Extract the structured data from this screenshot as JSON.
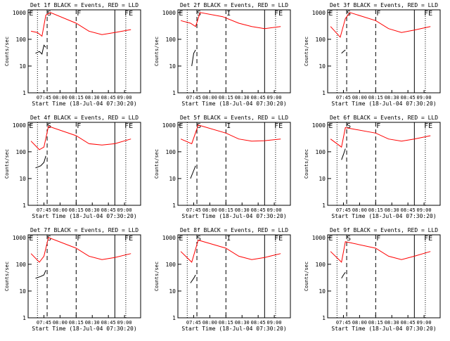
{
  "common": {
    "ylabel": "Counts/sec",
    "x_tick_labels": [
      "07:45",
      "08:00",
      "08:15",
      "08:30",
      "08:45",
      "09:00"
    ],
    "y_tick_labels": [
      "1",
      "10",
      "100",
      "1000"
    ],
    "xlabel": "Start Time (18-Jul-04 07:30:20)",
    "colors": {
      "events": "#000000",
      "lld": "#ff0000",
      "axes": "#000000"
    }
  },
  "chart_data": [
    {
      "type": "line",
      "title": "Det 1f BLACK = Events, RED = LLD",
      "markers": [
        "E",
        "S",
        "F",
        "FE"
      ],
      "series": [
        {
          "color": "black",
          "x": [
            7.62,
            7.68,
            7.72,
            7.75,
            7.78
          ],
          "y": [
            30,
            35,
            28,
            60,
            50
          ]
        },
        {
          "color": "red",
          "x": [
            7.55,
            7.65,
            7.72,
            7.78,
            7.85,
            8.25,
            8.45,
            8.65,
            8.85,
            9.1
          ],
          "y": [
            200,
            180,
            130,
            800,
            1000,
            400,
            200,
            150,
            180,
            230
          ]
        }
      ]
    },
    {
      "type": "line",
      "title": "Det 2f BLACK = Events, RED = LLD",
      "markers": [
        "E",
        "S",
        "I",
        "FE"
      ],
      "series": [
        {
          "color": "black",
          "x": [
            7.72,
            7.75,
            7.78
          ],
          "y": [
            10,
            30,
            40
          ]
        },
        {
          "color": "red",
          "x": [
            7.55,
            7.7,
            7.78,
            7.85,
            8.2,
            8.45,
            8.65,
            8.85,
            9.1
          ],
          "y": [
            500,
            400,
            300,
            1000,
            700,
            400,
            300,
            250,
            300
          ]
        }
      ]
    },
    {
      "type": "line",
      "title": "Det 3f BLACK = Events, RED = LLD",
      "markers": [
        "E",
        "S",
        "F",
        "FE"
      ],
      "series": [
        {
          "color": "black",
          "x": [
            7.72,
            7.75,
            7.78
          ],
          "y": [
            30,
            35,
            40
          ]
        },
        {
          "color": "red",
          "x": [
            7.55,
            7.7,
            7.78,
            7.85,
            8.25,
            8.45,
            8.65,
            8.85,
            9.1
          ],
          "y": [
            300,
            120,
            600,
            1000,
            500,
            250,
            180,
            220,
            300
          ]
        }
      ]
    },
    {
      "type": "line",
      "title": "Det 4f BLACK = Events, RED = LLD",
      "markers": [
        "E",
        "S",
        "F",
        "FE"
      ],
      "series": [
        {
          "color": "black",
          "x": [
            7.62,
            7.7,
            7.75,
            7.78
          ],
          "y": [
            25,
            30,
            40,
            70
          ]
        },
        {
          "color": "red",
          "x": [
            7.55,
            7.68,
            7.75,
            7.82,
            8.25,
            8.45,
            8.65,
            8.85,
            9.1
          ],
          "y": [
            250,
            120,
            150,
            900,
            400,
            200,
            180,
            200,
            300
          ]
        }
      ]
    },
    {
      "type": "line",
      "title": "Det 5f BLACK = Events, RED = LLD",
      "markers": [
        "E",
        "S",
        "I",
        "FE"
      ],
      "series": [
        {
          "color": "black",
          "x": [
            7.7,
            7.75,
            7.78
          ],
          "y": [
            10,
            20,
            30
          ]
        },
        {
          "color": "red",
          "x": [
            7.55,
            7.72,
            7.82,
            8.25,
            8.45,
            8.65,
            8.85,
            9.1
          ],
          "y": [
            300,
            200,
            1000,
            500,
            300,
            250,
            260,
            300
          ]
        }
      ]
    },
    {
      "type": "line",
      "title": "Det 6f BLACK = Events, RED = LLD",
      "markers": [
        "E",
        "S",
        "F",
        "FE"
      ],
      "series": [
        {
          "color": "black",
          "x": [
            7.72,
            7.75,
            7.78
          ],
          "y": [
            50,
            80,
            130
          ]
        },
        {
          "color": "red",
          "x": [
            7.55,
            7.72,
            7.78,
            8.25,
            8.45,
            8.65,
            8.85,
            9.1
          ],
          "y": [
            300,
            150,
            800,
            500,
            300,
            250,
            300,
            400
          ]
        }
      ]
    },
    {
      "type": "line",
      "title": "Det 7f BLACK = Events, RED = LLD",
      "markers": [
        "E",
        "S",
        "F",
        "FE"
      ],
      "series": [
        {
          "color": "black",
          "x": [
            7.62,
            7.7,
            7.75,
            7.78
          ],
          "y": [
            30,
            35,
            40,
            60
          ]
        },
        {
          "color": "red",
          "x": [
            7.55,
            7.68,
            7.75,
            7.82,
            8.25,
            8.45,
            8.65,
            8.85,
            9.1
          ],
          "y": [
            250,
            120,
            200,
            1000,
            400,
            200,
            150,
            180,
            250
          ]
        }
      ]
    },
    {
      "type": "line",
      "title": "Det 8f BLACK = Events, RED = LLD",
      "markers": [
        "E",
        "S",
        "I",
        "FE"
      ],
      "series": [
        {
          "color": "black",
          "x": [
            7.7,
            7.75,
            7.78
          ],
          "y": [
            20,
            30,
            40
          ]
        },
        {
          "color": "red",
          "x": [
            7.55,
            7.72,
            7.82,
            8.25,
            8.45,
            8.65,
            8.85,
            9.1
          ],
          "y": [
            300,
            120,
            800,
            400,
            200,
            150,
            180,
            250
          ]
        }
      ]
    },
    {
      "type": "line",
      "title": "Det 9f BLACK = Events, RED = LLD",
      "markers": [
        "E",
        "S",
        "F",
        "FE"
      ],
      "series": [
        {
          "color": "black",
          "x": [
            7.72,
            7.75,
            7.78
          ],
          "y": [
            30,
            40,
            50
          ]
        },
        {
          "color": "red",
          "x": [
            7.55,
            7.72,
            7.78,
            8.25,
            8.45,
            8.65,
            8.85,
            9.1
          ],
          "y": [
            300,
            120,
            700,
            400,
            200,
            150,
            200,
            300
          ]
        }
      ]
    }
  ]
}
